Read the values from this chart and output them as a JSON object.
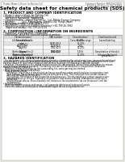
{
  "bg_color": "#e8e8e0",
  "page_bg": "#ffffff",
  "header_left": "Product Name: Lithium Ion Battery Cell",
  "header_right_line1": "Substance Number: SBR-049-00610",
  "header_right_line2": "Established / Revision: Dec.7,2016",
  "title": "Safety data sheet for chemical products (SDS)",
  "section1_title": "1. PRODUCT AND COMPANY IDENTIFICATION",
  "section1_lines": [
    "• Product name: Lithium Ion Battery Cell",
    "• Product code: Cylindrical-type cell",
    "   INR18650J, INR18650L, INR18650A",
    "• Company name:    Sanyo Electric Co., Ltd., Mobile Energy Company",
    "• Address:          2001 Kamizaibara, Sumoto-City, Hyogo, Japan",
    "• Telephone number:   +81-799-26-4111",
    "• Fax number:  +81-799-26-4129",
    "• Emergency telephone number (Weekday) +81-799-26-3962",
    "   (Night and holiday) +81-799-26-4101"
  ],
  "section2_title": "2. COMPOSITION / INFORMATION ON INGREDIENTS",
  "section2_intro": "• Substance or preparation: Preparation",
  "section2_sub": "• Information about the chemical nature of product:",
  "table_headers": [
    "Chemical name /\nSeveral name",
    "CAS number",
    "Concentration /\nConcentration range",
    "Classification and\nhazard labeling"
  ],
  "table_rows": [
    [
      "Lithium cobalt oxide\n(LiMnCoO₄)",
      "",
      "30-40%",
      ""
    ],
    [
      "Iron",
      "26265-80-5",
      "16-20%",
      "-"
    ],
    [
      "Aluminium",
      "7429-90-5",
      "2-6%",
      "-"
    ],
    [
      "Graphite\n(Artificial graphite-1)\n(Artificial graphite-2)",
      "7782-42-5\n7782-44-7",
      "10-20%",
      "-"
    ],
    [
      "Copper",
      "7440-50-8",
      "5-15%",
      "Sensitization of the skin\ngroup No.2"
    ],
    [
      "Organic electrolyte",
      "",
      "10-20%",
      "Inflammable liquid"
    ]
  ],
  "section3_title": "3. HAZARDS IDENTIFICATION",
  "section3_paras": [
    "   For the battery cell, chemical materials are stored in a hermetically sealed metal case, designed to withstand",
    "temperatures in pressure-generated conditions during normal use. As a result, during normal use, there is no",
    "physical danger of ignition or explosion and there is no danger of hazardous materials leakage.",
    "   However, if exposed to a fire, added mechanical shocks, decomposed, when electro-stimulation by misuse,",
    "the gas maybe vented or operated. The battery cell case will be breached or fire-polluted. Hazardous",
    "materials may be released.",
    "   Moreover, if heated strongly by the surrounding fire, some gas may be emitted.",
    "• Most important hazard and effects:",
    "   Human health effects:",
    "      Inhalation: The release of the electrolyte has an anesthesia action and stimulates in respiratory tract.",
    "      Skin contact: The release of the electrolyte stimulates a skin. The electrolyte skin contact causes a",
    "      sore and stimulation on the skin.",
    "      Eye contact: The release of the electrolyte stimulates eyes. The electrolyte eye contact causes a sore",
    "      and stimulation on the eye. Especially, a substance that causes a strong inflammation of the eye is",
    "      contained.",
    "      Environmental effects: Since a battery cell remains in the environment, do not throw out it into the",
    "      environment.",
    "• Specific hazards:",
    "   If the electrolyte contacts with water, it will generate detrimental hydrogen fluoride.",
    "   Since the lead-acid electrolyte is inflammable liquid, do not bring close to fire."
  ]
}
